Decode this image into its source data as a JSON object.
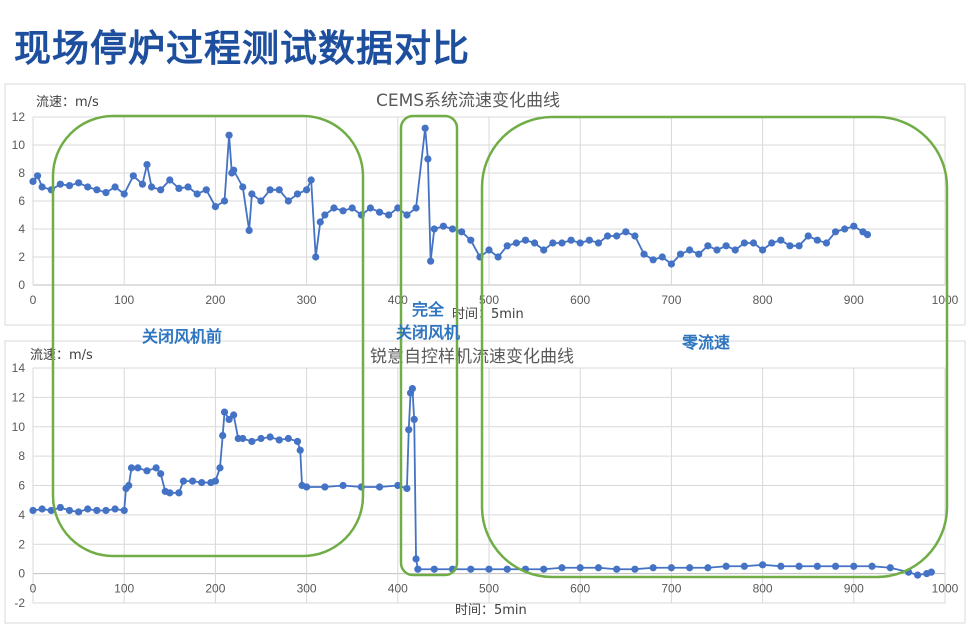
{
  "page_title": "现场停炉过程测试数据对比",
  "annotations": {
    "before": "关闭风机前",
    "shutdown_line1": "完全",
    "shutdown_line2": "关闭风机",
    "zero": "零流速",
    "box_color": "#70ad47",
    "text_color": "#2e75c0"
  },
  "chart_data": [
    {
      "type": "line",
      "title": "CEMS系统流速变化曲线",
      "ylabel": "流速：m/s",
      "xlabel": "时间：5min",
      "xlim": [
        0,
        1000
      ],
      "ylim": [
        0,
        12
      ],
      "xticks": [
        0,
        100,
        200,
        300,
        400,
        500,
        600,
        700,
        800,
        900,
        1000
      ],
      "yticks": [
        0,
        2,
        4,
        6,
        8,
        10,
        12
      ],
      "grid": true,
      "markers": true,
      "color": "#4472c4",
      "x": [
        0,
        5,
        10,
        20,
        30,
        40,
        50,
        60,
        70,
        80,
        90,
        100,
        110,
        120,
        125,
        130,
        140,
        150,
        160,
        170,
        180,
        190,
        200,
        210,
        215,
        218,
        220,
        230,
        237,
        240,
        250,
        260,
        270,
        280,
        290,
        300,
        305,
        310,
        315,
        320,
        330,
        340,
        350,
        360,
        370,
        380,
        390,
        400,
        410,
        420,
        430,
        433,
        436,
        440,
        450,
        460,
        470,
        480,
        490,
        500,
        510,
        520,
        530,
        540,
        550,
        560,
        570,
        580,
        590,
        600,
        610,
        620,
        630,
        640,
        650,
        660,
        670,
        680,
        690,
        700,
        710,
        720,
        730,
        740,
        750,
        760,
        770,
        780,
        790,
        800,
        810,
        820,
        830,
        840,
        850,
        860,
        870,
        880,
        890,
        900,
        910,
        915
      ],
      "y": [
        7.4,
        7.8,
        7.0,
        6.8,
        7.2,
        7.1,
        7.3,
        7.0,
        6.8,
        6.6,
        7.0,
        6.5,
        7.8,
        7.2,
        8.6,
        7.0,
        6.8,
        7.5,
        6.9,
        7.0,
        6.5,
        6.8,
        5.6,
        6.0,
        10.7,
        8.0,
        8.2,
        7.0,
        3.9,
        6.5,
        6.0,
        6.8,
        6.8,
        6.0,
        6.5,
        6.8,
        7.5,
        2.0,
        4.5,
        5.0,
        5.5,
        5.3,
        5.5,
        5.0,
        5.5,
        5.2,
        5.0,
        5.5,
        5.0,
        5.5,
        11.2,
        9.0,
        1.7,
        4.0,
        4.2,
        4.0,
        3.8,
        3.2,
        2.0,
        2.5,
        2.0,
        2.8,
        3.0,
        3.2,
        3.0,
        2.5,
        3.0,
        3.0,
        3.2,
        3.0,
        3.2,
        3.0,
        3.5,
        3.5,
        3.8,
        3.5,
        2.2,
        1.8,
        2.0,
        1.5,
        2.2,
        2.5,
        2.2,
        2.8,
        2.5,
        2.8,
        2.5,
        3.0,
        3.0,
        2.5,
        3.0,
        3.2,
        2.8,
        2.8,
        3.5,
        3.2,
        3.0,
        3.8,
        4.0,
        4.2,
        3.8,
        3.6
      ]
    },
    {
      "type": "line",
      "title": "锐意自控样机流速变化曲线",
      "ylabel": "流速：m/s",
      "xlabel": "时间：5min",
      "xlim": [
        0,
        1000
      ],
      "ylim": [
        -2,
        14
      ],
      "xticks": [
        0,
        100,
        200,
        300,
        400,
        500,
        600,
        700,
        800,
        900,
        1000
      ],
      "yticks": [
        -2,
        0,
        2,
        4,
        6,
        8,
        10,
        12,
        14
      ],
      "grid": true,
      "markers": true,
      "color": "#4472c4",
      "x": [
        0,
        10,
        20,
        30,
        40,
        50,
        60,
        70,
        80,
        90,
        100,
        102,
        105,
        108,
        115,
        125,
        135,
        140,
        145,
        150,
        160,
        165,
        175,
        185,
        195,
        200,
        205,
        208,
        210,
        215,
        220,
        225,
        230,
        240,
        250,
        260,
        270,
        280,
        290,
        293,
        295,
        300,
        320,
        340,
        360,
        380,
        400,
        410,
        412,
        414,
        416,
        418,
        420,
        422,
        440,
        460,
        480,
        500,
        520,
        540,
        560,
        580,
        600,
        620,
        640,
        660,
        680,
        700,
        720,
        740,
        760,
        780,
        800,
        820,
        840,
        860,
        880,
        900,
        920,
        940,
        960,
        970,
        980,
        985
      ],
      "y": [
        4.3,
        4.4,
        4.3,
        4.5,
        4.3,
        4.2,
        4.4,
        4.3,
        4.3,
        4.4,
        4.3,
        5.8,
        6.0,
        7.2,
        7.2,
        7.0,
        7.2,
        6.8,
        5.6,
        5.5,
        5.5,
        6.3,
        6.3,
        6.2,
        6.2,
        6.3,
        7.2,
        9.4,
        11.0,
        10.5,
        10.8,
        9.2,
        9.2,
        9.0,
        9.2,
        9.3,
        9.1,
        9.2,
        9.0,
        8.4,
        6.0,
        5.9,
        5.9,
        6.0,
        5.9,
        5.9,
        6.0,
        5.8,
        9.8,
        12.3,
        12.6,
        10.5,
        1.0,
        0.3,
        0.3,
        0.3,
        0.3,
        0.3,
        0.3,
        0.3,
        0.3,
        0.4,
        0.4,
        0.4,
        0.3,
        0.3,
        0.4,
        0.4,
        0.4,
        0.4,
        0.5,
        0.5,
        0.6,
        0.5,
        0.5,
        0.5,
        0.5,
        0.5,
        0.5,
        0.4,
        0.1,
        -0.1,
        0.0,
        0.1
      ]
    }
  ]
}
